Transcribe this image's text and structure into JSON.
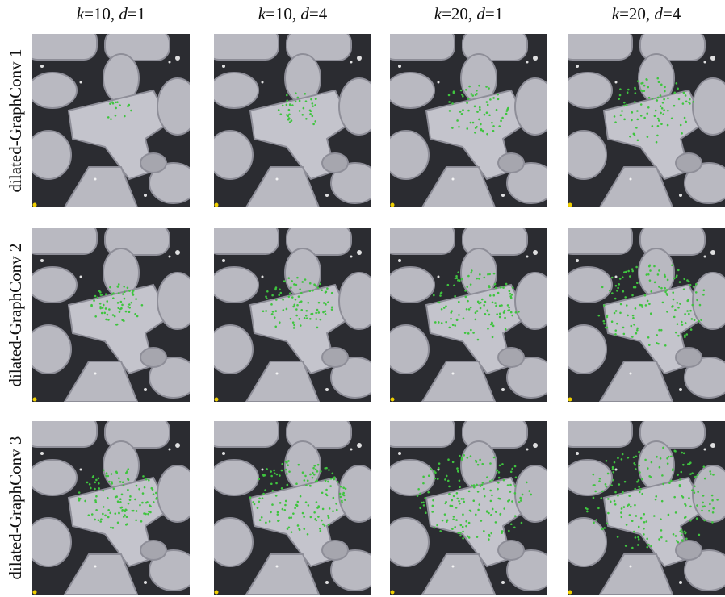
{
  "columns": [
    "k=10, d=1",
    "k=10, d=4",
    "k=20, d=1",
    "k=20, d=4"
  ],
  "rows": [
    "dilated-GraphConv 1",
    "dilated-GraphConv 2",
    "dilated-GraphConv 3"
  ]
}
